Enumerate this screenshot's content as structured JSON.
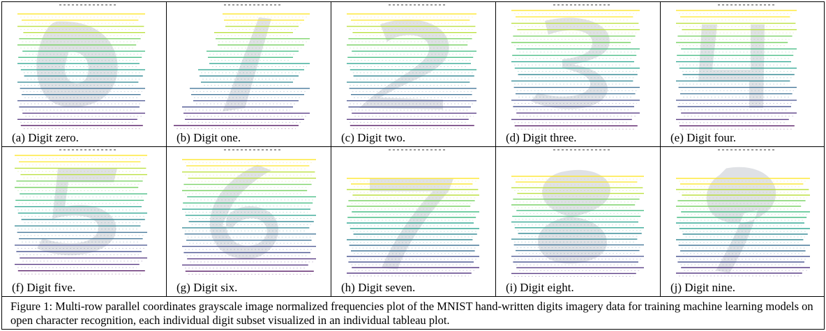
{
  "panels": [
    {
      "caption": "(a) Digit zero.",
      "digit": "0"
    },
    {
      "caption": "(b) Digit one.",
      "digit": "1"
    },
    {
      "caption": "(c) Digit two.",
      "digit": "2"
    },
    {
      "caption": "(d) Digit three.",
      "digit": "3"
    },
    {
      "caption": "(e) Digit four.",
      "digit": "4"
    },
    {
      "caption": "(f) Digit five.",
      "digit": "5"
    },
    {
      "caption": "(g) Digit six.",
      "digit": "6"
    },
    {
      "caption": "(h) Digit seven.",
      "digit": "7"
    },
    {
      "caption": "(i) Digit eight.",
      "digit": "8"
    },
    {
      "caption": "(j) Digit nine.",
      "digit": "9"
    }
  ],
  "figure_caption": "Figure 1: Multi-row parallel coordinates grayscale image normalized frequencies plot of the MNIST hand-written digits imagery data for training machine learning models on open character recognition, each individual digit subset visualized in an individual tableau plot.",
  "colors": {
    "colormap": [
      "#fde725",
      "#b5de2b",
      "#6ece58",
      "#35b779",
      "#1f9e89",
      "#26828e",
      "#31688e",
      "#3e4989",
      "#482878",
      "#440154"
    ],
    "ghost": "#b8bcc6",
    "border": "#000000"
  }
}
